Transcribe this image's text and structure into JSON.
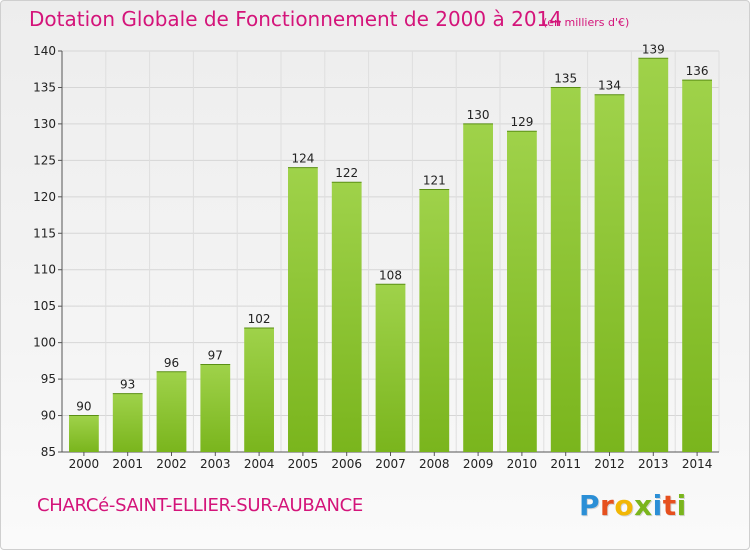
{
  "title": "Dotation Globale de Fonctionnement de 2000 à 2014",
  "subtitle": "(en milliers d'€)",
  "commune": "CHARCé-SAINT-ELLIER-SUR-AUBANCE",
  "logo": {
    "letters": [
      "P",
      "r",
      "o",
      "x",
      "i",
      "t",
      "i"
    ],
    "colors": [
      "#2b8fd6",
      "#e6501e",
      "#f2b705",
      "#7ab51d",
      "#2b8fd6",
      "#e6501e",
      "#7ab51d"
    ]
  },
  "chart_data": {
    "type": "bar",
    "title": "Dotation Globale de Fonctionnement de 2000 à 2014",
    "subtitle": "(en milliers d'€)",
    "categories": [
      "2000",
      "2001",
      "2002",
      "2003",
      "2004",
      "2005",
      "2006",
      "2007",
      "2008",
      "2009",
      "2010",
      "2011",
      "2012",
      "2013",
      "2014"
    ],
    "values": [
      90,
      93,
      96,
      97,
      102,
      124,
      122,
      108,
      121,
      130,
      129,
      135,
      134,
      139,
      136
    ],
    "ylim": [
      85,
      140
    ],
    "yticks": [
      85,
      90,
      95,
      100,
      105,
      110,
      115,
      120,
      125,
      130,
      135,
      140
    ],
    "grid": true,
    "bar_color": "#7ab51d",
    "bar_color_light": "#9fd24a"
  }
}
